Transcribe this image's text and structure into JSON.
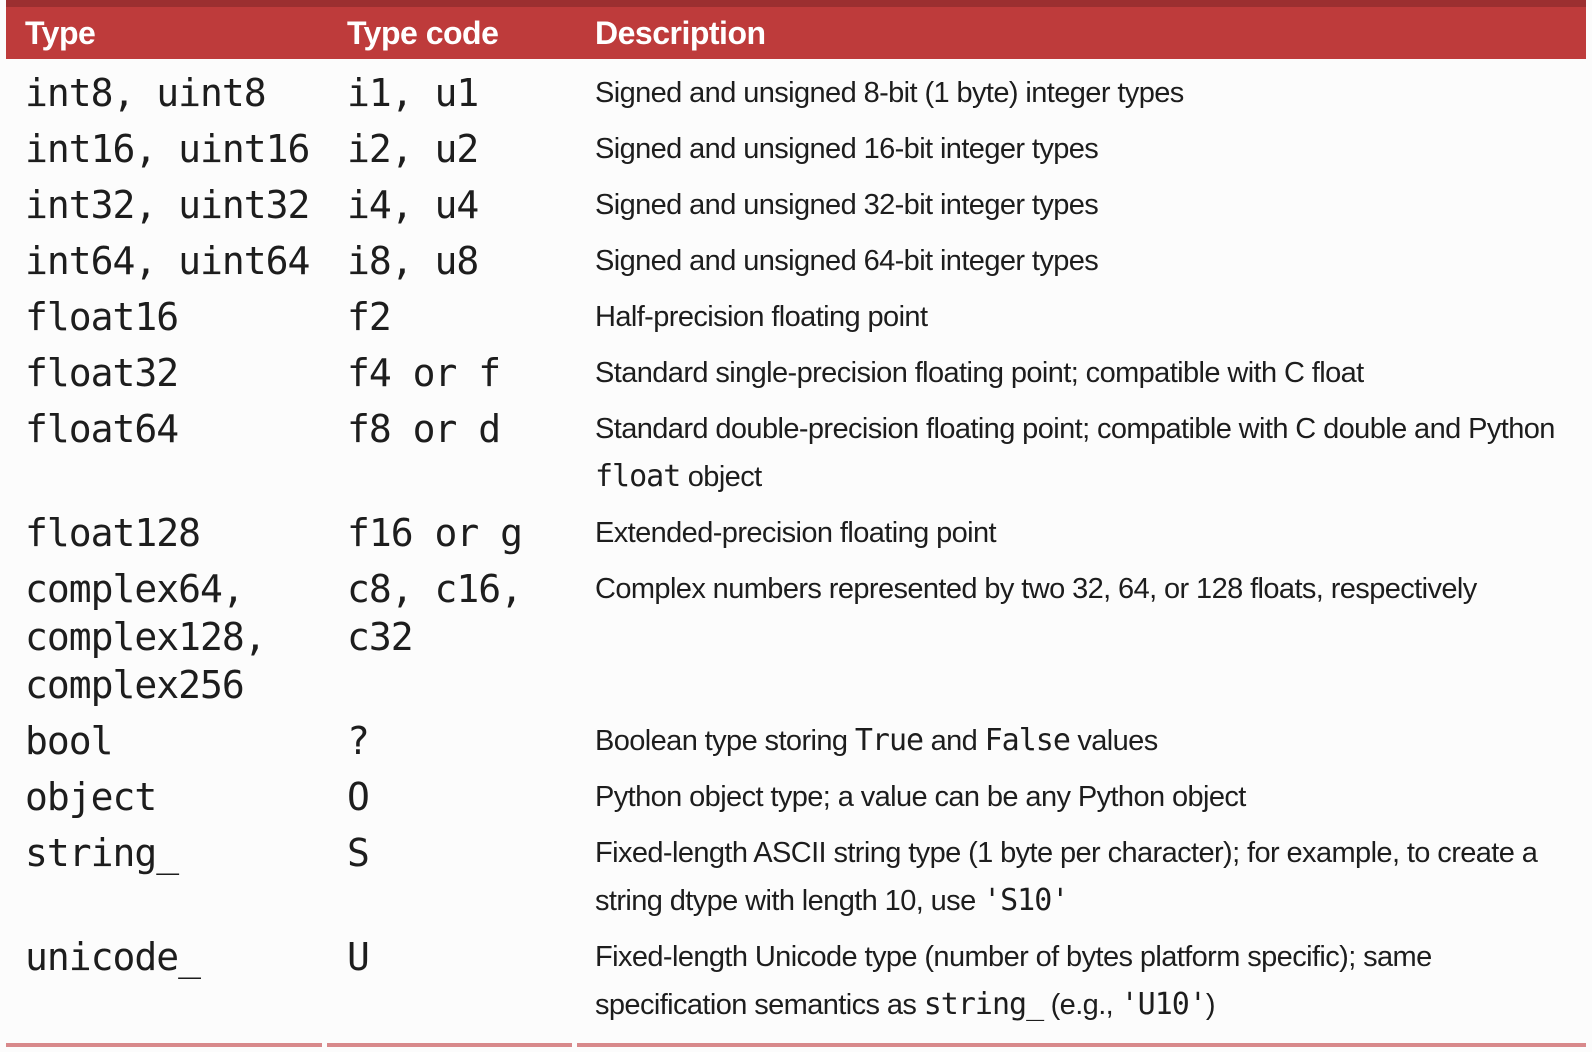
{
  "page": {
    "background": "#fcfcfc",
    "text_color": "#1d1d1d"
  },
  "table": {
    "header": {
      "bg": "#be3b3b",
      "top_border": "#9c2f30",
      "text_color": "#ffffff",
      "columns": [
        "Type",
        "Type code",
        "Description"
      ]
    },
    "bottom_rule_color": "#d8898b",
    "rows": [
      {
        "type": "int8, uint8",
        "code": "i1, u1",
        "description": [
          {
            "text": "Signed and unsigned 8-bit (1 byte) integer types",
            "mono": false
          }
        ]
      },
      {
        "type": "int16, uint16",
        "code": "i2, u2",
        "description": [
          {
            "text": "Signed and unsigned 16-bit integer types",
            "mono": false
          }
        ]
      },
      {
        "type": "int32, uint32",
        "code": "i4, u4",
        "description": [
          {
            "text": "Signed and unsigned 32-bit integer types",
            "mono": false
          }
        ]
      },
      {
        "type": "int64, uint64",
        "code": "i8, u8",
        "description": [
          {
            "text": "Signed and unsigned 64-bit integer types",
            "mono": false
          }
        ]
      },
      {
        "type": "float16",
        "code": "f2",
        "description": [
          {
            "text": "Half-precision floating point",
            "mono": false
          }
        ]
      },
      {
        "type": "float32",
        "code": "f4 or f",
        "description": [
          {
            "text": "Standard single-precision floating point; compatible with C float",
            "mono": false
          }
        ]
      },
      {
        "type": "float64",
        "code": "f8 or d",
        "description": [
          {
            "text": "Standard double-precision floating point; compatible with C double and Python ",
            "mono": false
          },
          {
            "text": "float",
            "mono": true
          },
          {
            "text": " object",
            "mono": false
          }
        ]
      },
      {
        "type": "float128",
        "code": "f16 or g",
        "description": [
          {
            "text": "Extended-precision floating point",
            "mono": false
          }
        ]
      },
      {
        "type": "complex64, complex128, complex256",
        "code": "c8, c16, c32",
        "description": [
          {
            "text": "Complex numbers represented by two 32, 64, or 128 floats, respectively",
            "mono": false
          }
        ]
      },
      {
        "type": "bool",
        "code": "?",
        "description": [
          {
            "text": "Boolean type storing ",
            "mono": false
          },
          {
            "text": "True",
            "mono": true
          },
          {
            "text": " and ",
            "mono": false
          },
          {
            "text": "False",
            "mono": true
          },
          {
            "text": " values",
            "mono": false
          }
        ]
      },
      {
        "type": "object",
        "code": "O",
        "description": [
          {
            "text": "Python object type; a value can be any Python object",
            "mono": false
          }
        ]
      },
      {
        "type": "string_",
        "code": "S",
        "description": [
          {
            "text": "Fixed-length ASCII string type (1 byte per character); for example, to create a string dtype with length 10, use ",
            "mono": false
          },
          {
            "text": "'S10'",
            "mono": true
          }
        ]
      },
      {
        "type": "unicode_",
        "code": "U",
        "description": [
          {
            "text": "Fixed-length Unicode type (number of bytes platform specific); same specification semantics as ",
            "mono": false
          },
          {
            "text": "string_",
            "mono": true
          },
          {
            "text": " (e.g., ",
            "mono": false
          },
          {
            "text": "'U10'",
            "mono": true
          },
          {
            "text": ")",
            "mono": false
          }
        ]
      }
    ]
  }
}
